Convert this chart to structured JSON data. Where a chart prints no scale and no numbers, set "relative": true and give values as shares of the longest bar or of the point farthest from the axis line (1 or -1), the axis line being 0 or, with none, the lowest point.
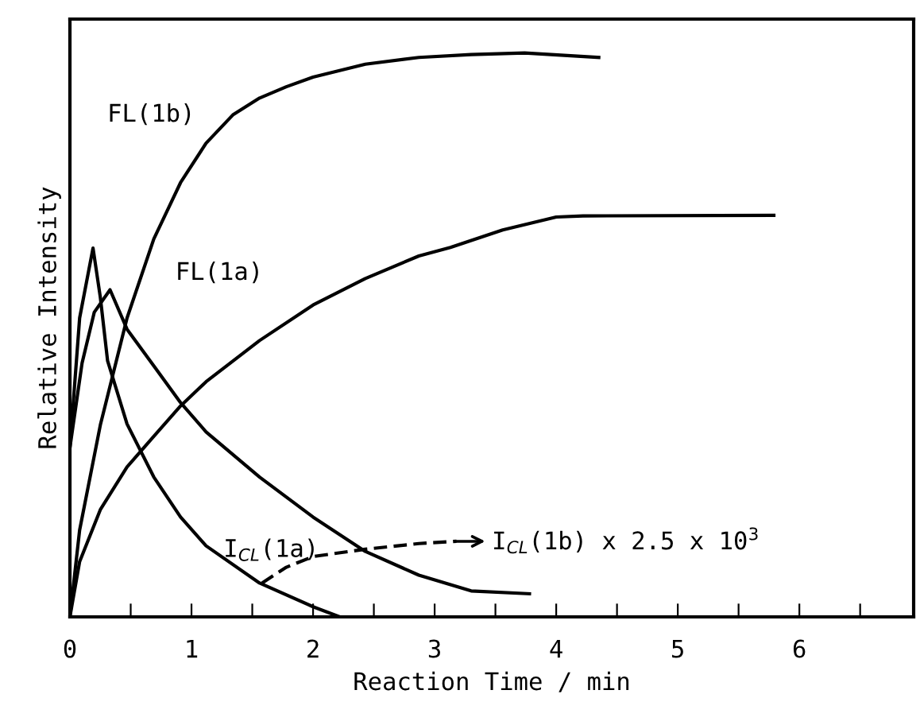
{
  "chart_data": {
    "type": "line",
    "relative": true,
    "xlabel": "Reaction Time / min",
    "ylabel": "Relative Intensity",
    "xlim": [
      0,
      6.94
    ],
    "xticks": [
      0,
      {
        "value": 0.5,
        "label": null
      },
      1,
      {
        "value": 1.5,
        "label": null
      },
      2,
      {
        "value": 2.5,
        "label": null
      },
      3,
      {
        "value": 3.5,
        "label": null
      },
      4,
      {
        "value": 4.5,
        "label": null
      },
      5,
      {
        "value": 5.5,
        "label": null
      },
      6,
      {
        "value": 6.5,
        "label": null
      }
    ],
    "marker": "none",
    "grid": false,
    "legend": false,
    "series": [
      {
        "color": "#000000",
        "x": [
          0,
          0.08,
          0.25,
          0.47,
          0.69,
          0.91,
          1.12,
          1.34,
          1.56,
          1.78,
          2.0,
          2.43,
          2.87,
          3.3,
          3.74,
          4.35
        ],
        "values": [
          0,
          0.154,
          0.34,
          0.53,
          0.67,
          0.77,
          0.84,
          0.89,
          0.92,
          0.94,
          0.957,
          0.98,
          0.992,
          0.997,
          1.0,
          0.992
        ]
      },
      {
        "color": "#000000",
        "x": [
          0,
          0.08,
          0.25,
          0.47,
          0.69,
          0.91,
          1.12,
          1.56,
          2.0,
          2.43,
          2.87,
          3.13,
          3.56,
          4.0,
          4.22,
          5.79
        ],
        "values": [
          0,
          0.098,
          0.19,
          0.266,
          0.32,
          0.374,
          0.417,
          0.49,
          0.553,
          0.6,
          0.64,
          0.655,
          0.686,
          0.709,
          0.711,
          0.712
        ]
      },
      {
        "color": "#000000",
        "x": [
          0,
          0.1,
          0.2,
          0.33,
          0.47,
          0.69,
          0.91,
          1.12,
          1.56,
          2.0,
          2.43,
          2.87,
          3.3,
          3.78
        ],
        "values": [
          0.3,
          0.45,
          0.54,
          0.58,
          0.51,
          0.445,
          0.38,
          0.328,
          0.248,
          0.177,
          0.116,
          0.074,
          0.046,
          0.041
        ]
      },
      {
        "color": "#000000",
        "x": [
          0,
          0.08,
          0.19,
          0.25,
          0.31,
          0.47,
          0.69,
          0.91,
          1.12,
          1.56,
          2.0,
          2.22
        ],
        "values": [
          0.3,
          0.53,
          0.654,
          0.567,
          0.454,
          0.342,
          0.248,
          0.177,
          0.126,
          0.06,
          0.018,
          0
        ]
      },
      {
        "color": "#000000",
        "line_style": "dashed",
        "x": [
          1.58,
          1.78,
          2.0,
          2.43,
          2.87,
          3.18
        ],
        "values": [
          0.06,
          0.088,
          0.107,
          0.12,
          0.13,
          0.134
        ]
      }
    ],
    "annotations": [
      {
        "text": "FL(1b)",
        "x": 1.34,
        "y": 0.89
      },
      "FL(1a)",
      {
        "text": "I$_{CL}$(1a)",
        "x": 2.0,
        "y": 0.177
      },
      {
        "text": "I$_{CL}$(1b) x 2.5 x 10$^{3}$",
        "x": 3.18,
        "y": 0.134
      }
    ]
  }
}
